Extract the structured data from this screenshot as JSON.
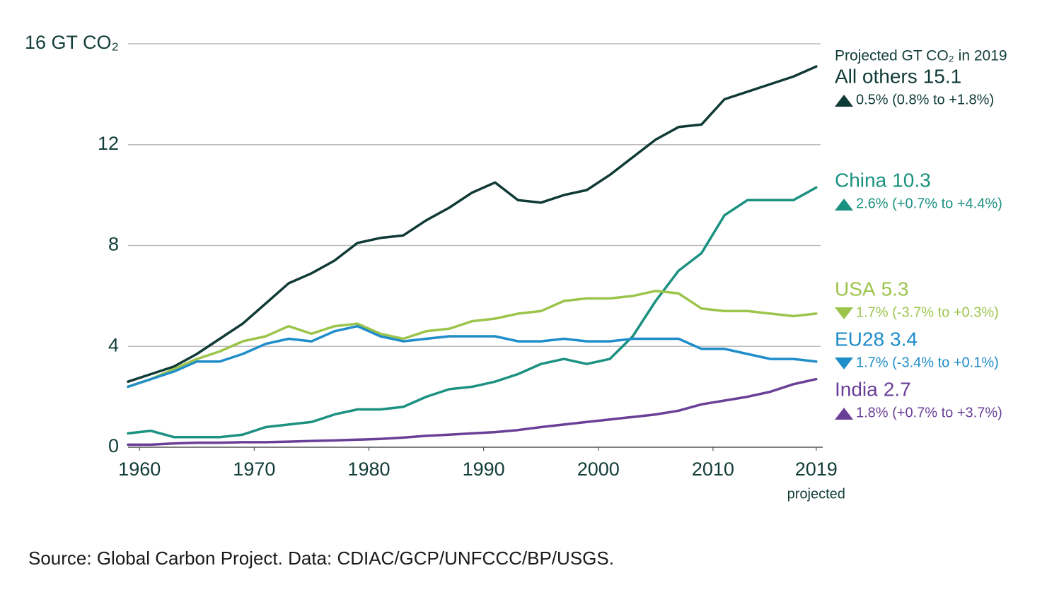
{
  "chart_data": {
    "type": "line",
    "legend_title": "Projected GT CO₂ in 2019",
    "x_annotation": "projected",
    "source": "Source: Global Carbon Project. Data: CDIAC/GCP/UNFCCC/BP/USGS.",
    "x": [
      1959,
      1961,
      1963,
      1965,
      1967,
      1969,
      1971,
      1973,
      1975,
      1977,
      1979,
      1981,
      1983,
      1985,
      1987,
      1989,
      1991,
      1993,
      1995,
      1997,
      1999,
      2001,
      2003,
      2005,
      2007,
      2009,
      2011,
      2013,
      2015,
      2017,
      2019
    ],
    "xlim": [
      1959,
      2020
    ],
    "xticks": [
      1960,
      1970,
      1980,
      1990,
      2000,
      2010,
      2019
    ],
    "ylim": [
      0,
      16
    ],
    "yticks": [
      0,
      4,
      8,
      12,
      {
        "value": 16,
        "label": "16 GT CO₂"
      }
    ],
    "grid": true,
    "series": [
      {
        "name": "All others",
        "color": "#0f3a36",
        "projected_value": 15.1,
        "trend": "up",
        "change_label": "0.5% (0.8% to +1.8%)",
        "values": [
          2.6,
          2.9,
          3.2,
          3.7,
          4.3,
          4.9,
          5.7,
          6.5,
          6.9,
          7.4,
          8.1,
          8.3,
          8.4,
          9.0,
          9.5,
          10.1,
          10.5,
          9.8,
          9.7,
          10.0,
          10.2,
          10.8,
          11.5,
          12.2,
          12.7,
          12.8,
          13.8,
          14.1,
          14.4,
          14.7,
          15.1
        ]
      },
      {
        "name": "China",
        "color": "#1b9181",
        "projected_value": 10.3,
        "trend": "up",
        "change_label": "2.6% (+0.7% to +4.4%)",
        "values": [
          0.55,
          0.65,
          0.4,
          0.4,
          0.4,
          0.5,
          0.8,
          0.9,
          1.0,
          1.3,
          1.5,
          1.5,
          1.6,
          2.0,
          2.3,
          2.4,
          2.6,
          2.9,
          3.3,
          3.5,
          3.3,
          3.5,
          4.4,
          5.8,
          7.0,
          7.7,
          9.2,
          9.8,
          9.8,
          9.8,
          10.3
        ]
      },
      {
        "name": "USA",
        "color": "#9cc44b",
        "projected_value": 5.3,
        "trend": "down",
        "change_label": "1.7% (-3.7% to +0.3%)",
        "values": [
          2.4,
          2.7,
          3.1,
          3.5,
          3.8,
          4.2,
          4.4,
          4.8,
          4.5,
          4.8,
          4.9,
          4.5,
          4.3,
          4.6,
          4.7,
          5.0,
          5.1,
          5.3,
          5.4,
          5.8,
          5.9,
          5.9,
          6.0,
          6.2,
          6.1,
          5.5,
          5.4,
          5.4,
          5.3,
          5.2,
          5.3
        ]
      },
      {
        "name": "EU28",
        "color": "#1f8dc9",
        "projected_value": 3.4,
        "trend": "down",
        "change_label": "1.7% (-3.4% to +0.1%)",
        "values": [
          2.4,
          2.7,
          3.0,
          3.4,
          3.4,
          3.7,
          4.1,
          4.3,
          4.2,
          4.6,
          4.8,
          4.4,
          4.2,
          4.3,
          4.4,
          4.4,
          4.4,
          4.2,
          4.2,
          4.3,
          4.2,
          4.2,
          4.3,
          4.3,
          4.3,
          3.9,
          3.9,
          3.7,
          3.5,
          3.5,
          3.4
        ]
      },
      {
        "name": "India",
        "color": "#6a3f97",
        "projected_value": 2.7,
        "trend": "up",
        "change_label": "1.8% (+0.7% to +3.7%)",
        "values": [
          0.1,
          0.1,
          0.15,
          0.18,
          0.18,
          0.2,
          0.2,
          0.22,
          0.25,
          0.27,
          0.3,
          0.33,
          0.38,
          0.45,
          0.5,
          0.55,
          0.6,
          0.68,
          0.8,
          0.9,
          1.0,
          1.1,
          1.2,
          1.3,
          1.45,
          1.7,
          1.85,
          2.0,
          2.2,
          2.5,
          2.7
        ]
      }
    ]
  }
}
